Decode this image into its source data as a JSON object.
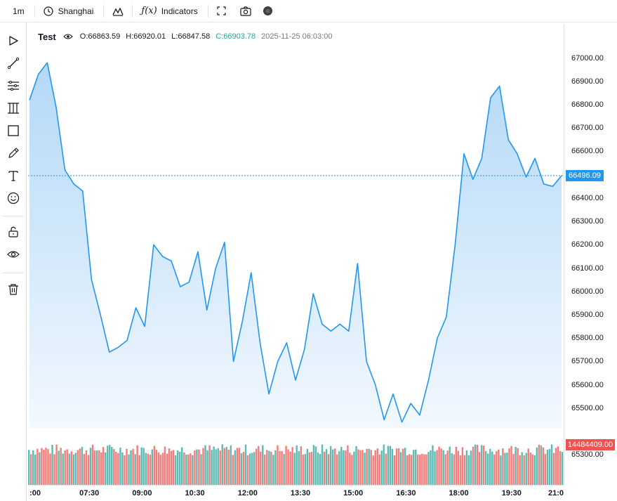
{
  "toolbar": {
    "interval": "1m",
    "timezone": "Shanghai",
    "chart_type_icon": "area-chart-icon",
    "indicators_label": "Indicators",
    "fullscreen_icon": "fullscreen-icon",
    "screenshot_icon": "camera-icon",
    "theme_icon": "theme-toggle-icon"
  },
  "sidebar": {
    "tools": [
      "cursor-icon",
      "trend-line-icon",
      "fib-icon",
      "pattern-icon",
      "rectangle-icon",
      "brush-icon",
      "text-icon",
      "emoji-icon",
      "lock-icon",
      "eye-icon",
      "trash-icon"
    ]
  },
  "legend": {
    "symbol": "Test",
    "open": "O:66863.59",
    "high": "H:66920.01",
    "low": "L:66847.58",
    "close": "C:66903.78",
    "datetime": "2025-11-25 06:03:00"
  },
  "colors": {
    "line": "#2196f3",
    "area_top": "#b3d9f7",
    "area_bottom": "#f2f8fe",
    "up": "#26a69a",
    "down": "#ef5350",
    "last_badge": "#2196f3",
    "volume_badge": "#ef5350"
  },
  "chart_data": {
    "type": "area",
    "x_label_ticks": [
      ":00",
      "07:30",
      "09:00",
      "10:30",
      "12:00",
      "13:30",
      "15:00",
      "16:30",
      "18:00",
      "19:30",
      "21:0"
    ],
    "y_ticks": [
      "67000.00",
      "66900.00",
      "66800.00",
      "66700.00",
      "66600.00",
      "66500.00",
      "66400.00",
      "66300.00",
      "66200.00",
      "66100.00",
      "66000.00",
      "65900.00",
      "65800.00",
      "65700.00",
      "65600.00",
      "65500.00",
      "65300.00"
    ],
    "ylim": [
      65150,
      67050
    ],
    "last_price": "66496.09",
    "volume_label": "14484409.00",
    "x": [
      "06:00",
      "06:15",
      "06:30",
      "06:45",
      "07:00",
      "07:15",
      "07:30",
      "07:45",
      "08:00",
      "08:15",
      "08:30",
      "08:45",
      "09:00",
      "09:15",
      "09:30",
      "09:45",
      "10:00",
      "10:15",
      "10:30",
      "10:45",
      "11:00",
      "11:15",
      "11:30",
      "11:45",
      "12:00",
      "12:15",
      "12:30",
      "12:45",
      "13:00",
      "13:15",
      "13:30",
      "13:45",
      "14:00",
      "14:15",
      "14:30",
      "14:45",
      "15:00",
      "15:15",
      "15:30",
      "15:45",
      "16:00",
      "16:15",
      "16:30",
      "16:45",
      "17:00",
      "17:15",
      "17:30",
      "17:45",
      "18:00",
      "18:15",
      "18:30",
      "18:45",
      "19:00",
      "19:15",
      "19:30",
      "19:45",
      "20:00",
      "20:15",
      "20:30",
      "20:45",
      "21:00"
    ],
    "values": [
      66820,
      66930,
      66980,
      66790,
      66520,
      66460,
      66430,
      66050,
      65900,
      65740,
      65760,
      65790,
      65930,
      65850,
      66200,
      66150,
      66130,
      66020,
      66040,
      66170,
      65920,
      66100,
      66210,
      65700,
      65870,
      66080,
      65780,
      65560,
      65700,
      65780,
      65620,
      65750,
      65990,
      65860,
      65830,
      65860,
      65830,
      66120,
      65700,
      65600,
      65450,
      65560,
      65440,
      65520,
      65470,
      65620,
      65800,
      65890,
      66200,
      66590,
      66480,
      66570,
      66830,
      66880,
      66650,
      66590,
      66490,
      66570,
      66460,
      66450,
      66496
    ]
  }
}
